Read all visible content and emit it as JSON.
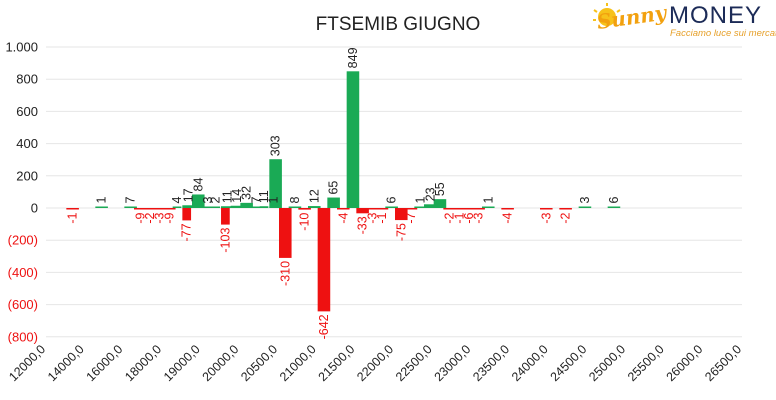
{
  "logo": {
    "brand_part1": "Sunny",
    "brand_part2": "MONEY",
    "tagline": "Facciamo luce sui mercati",
    "colors": {
      "sun": "#f2a10f",
      "money": "#1c2b57"
    }
  },
  "chart_data": {
    "type": "bar",
    "title": "FTSEMIB GIUGNO",
    "xlabel": "",
    "ylabel": "",
    "ylim": [
      -800,
      1000
    ],
    "y_ticks": [
      1000,
      800,
      600,
      400,
      200,
      0,
      -200,
      -400,
      -600,
      -800
    ],
    "y_tick_labels": [
      "1.000",
      "800",
      "600",
      "400",
      "200",
      "0",
      "(200)",
      "(400)",
      "(600)",
      "(800)"
    ],
    "grid": "horizontal",
    "colors": {
      "positive": "#1aaa55",
      "negative": "#ee1111",
      "positive_label": "#222222",
      "negative_label": "#ee1111",
      "grid": "#e6e6e6"
    },
    "x_tick_labels": [
      "12000,0",
      "14000,0",
      "16000,0",
      "18000,0",
      "19000,0",
      "20000,0",
      "20500,0",
      "21000,0",
      "21500,0",
      "22000,0",
      "22500,0",
      "23000,0",
      "23500,0",
      "24000,0",
      "24500,0",
      "25000,0",
      "25500,0",
      "26000,0",
      "26500,0"
    ],
    "bar_count": 72,
    "values": [
      {
        "slot": 2,
        "value": -1
      },
      {
        "slot": 5,
        "value": 1
      },
      {
        "slot": 8,
        "value": 7
      },
      {
        "slot": 9,
        "value": -9
      },
      {
        "slot": 10,
        "value": -2
      },
      {
        "slot": 11,
        "value": -3
      },
      {
        "slot": 12,
        "value": -9
      },
      {
        "slot": 13,
        "value": 4
      },
      {
        "slot": 13,
        "value": -77
      },
      {
        "slot": 14,
        "value": 17
      },
      {
        "slot": 15,
        "value": 84
      },
      {
        "slot": 16,
        "value": 3
      },
      {
        "slot": 17,
        "value": 2
      },
      {
        "slot": 17,
        "value": -103
      },
      {
        "slot": 18,
        "value": 11
      },
      {
        "slot": 19,
        "value": 14
      },
      {
        "slot": 20,
        "value": 32
      },
      {
        "slot": 21,
        "value": 7
      },
      {
        "slot": 22,
        "value": 11
      },
      {
        "slot": 22,
        "value": 1
      },
      {
        "slot": 23,
        "value": 303
      },
      {
        "slot": 24,
        "value": -310
      },
      {
        "slot": 25,
        "value": 8
      },
      {
        "slot": 26,
        "value": -10
      },
      {
        "slot": 27,
        "value": 12
      },
      {
        "slot": 28,
        "value": -642
      },
      {
        "slot": 29,
        "value": 65
      },
      {
        "slot": 30,
        "value": -4
      },
      {
        "slot": 31,
        "value": 849
      },
      {
        "slot": 32,
        "value": -33
      },
      {
        "slot": 33,
        "value": -3
      },
      {
        "slot": 34,
        "value": -1
      },
      {
        "slot": 35,
        "value": 6
      },
      {
        "slot": 36,
        "value": -75
      },
      {
        "slot": 37,
        "value": -7
      },
      {
        "slot": 38,
        "value": 1
      },
      {
        "slot": 39,
        "value": 23
      },
      {
        "slot": 40,
        "value": 55
      },
      {
        "slot": 41,
        "value": -2
      },
      {
        "slot": 42,
        "value": -1
      },
      {
        "slot": 43,
        "value": -6
      },
      {
        "slot": 44,
        "value": -3
      },
      {
        "slot": 45,
        "value": 1
      },
      {
        "slot": 47,
        "value": -4
      },
      {
        "slot": 51,
        "value": -3
      },
      {
        "slot": 53,
        "value": -2
      },
      {
        "slot": 55,
        "value": 3
      },
      {
        "slot": 58,
        "value": 6
      }
    ]
  }
}
